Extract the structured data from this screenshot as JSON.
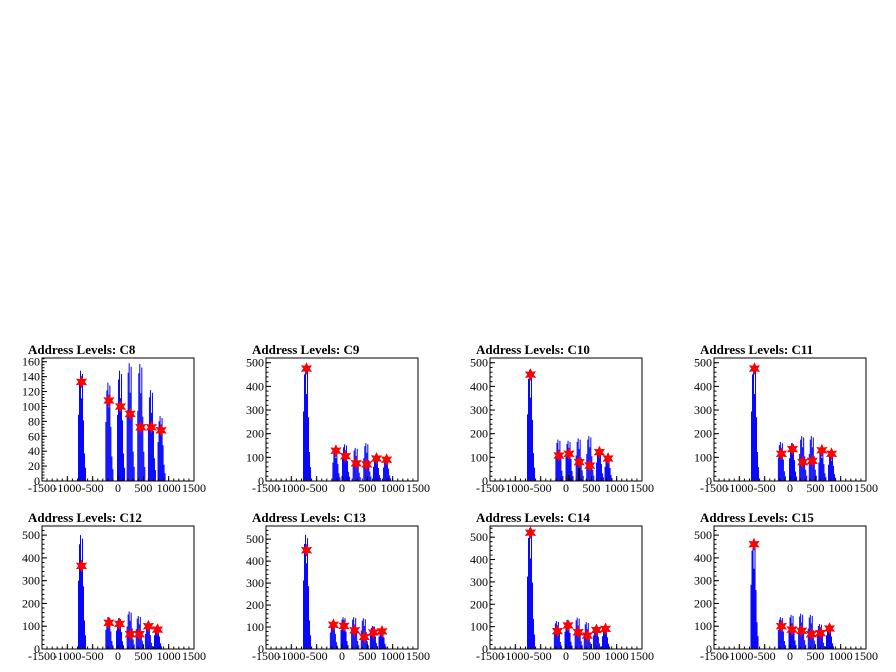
{
  "chart_data": [
    {
      "type": "histogram",
      "title": "Address Levels: C8",
      "ylim": [
        0,
        165
      ],
      "yticks": [
        0,
        20,
        40,
        60,
        80,
        100,
        120,
        140,
        160
      ],
      "xlim": [
        -1500,
        1500
      ],
      "xticks": [
        -1500,
        -1000,
        -500,
        0,
        500,
        1000,
        1500
      ],
      "peaks": [
        {
          "x": -720,
          "y": 148
        },
        {
          "x": -180,
          "y": 132
        },
        {
          "x": 50,
          "y": 148
        },
        {
          "x": 240,
          "y": 158
        },
        {
          "x": 450,
          "y": 157
        },
        {
          "x": 660,
          "y": 122
        },
        {
          "x": 850,
          "y": 87
        }
      ],
      "markers": [
        {
          "x": -720,
          "y": 133
        },
        {
          "x": -180,
          "y": 108
        },
        {
          "x": 50,
          "y": 100
        },
        {
          "x": 240,
          "y": 90
        },
        {
          "x": 450,
          "y": 72
        },
        {
          "x": 660,
          "y": 72
        },
        {
          "x": 850,
          "y": 68
        }
      ],
      "extra_bars": []
    },
    {
      "type": "histogram",
      "title": "Address Levels: C9",
      "ylim": [
        0,
        520
      ],
      "yticks": [
        0,
        100,
        200,
        300,
        400,
        500
      ],
      "xlim": [
        -1500,
        1500
      ],
      "xticks": [
        -1500,
        -1000,
        -500,
        0,
        500,
        1000,
        1500
      ],
      "peaks": [
        {
          "x": -700,
          "y": 490
        },
        {
          "x": -120,
          "y": 130
        },
        {
          "x": 70,
          "y": 155
        },
        {
          "x": 280,
          "y": 140
        },
        {
          "x": 490,
          "y": 160
        },
        {
          "x": 680,
          "y": 100
        },
        {
          "x": 880,
          "y": 95
        }
      ],
      "markers": [
        {
          "x": -700,
          "y": 475
        },
        {
          "x": -120,
          "y": 128
        },
        {
          "x": 70,
          "y": 105
        },
        {
          "x": 280,
          "y": 75
        },
        {
          "x": 490,
          "y": 70
        },
        {
          "x": 680,
          "y": 95
        },
        {
          "x": 880,
          "y": 90
        }
      ],
      "extra_bars": []
    },
    {
      "type": "histogram",
      "title": "Address Levels: C10",
      "ylim": [
        0,
        520
      ],
      "yticks": [
        0,
        100,
        200,
        300,
        400,
        500
      ],
      "xlim": [
        -1500,
        1500
      ],
      "xticks": [
        -1500,
        -1000,
        -500,
        0,
        500,
        1000,
        1500
      ],
      "peaks": [
        {
          "x": -700,
          "y": 470
        },
        {
          "x": -140,
          "y": 175
        },
        {
          "x": 60,
          "y": 170
        },
        {
          "x": 260,
          "y": 180
        },
        {
          "x": 470,
          "y": 190
        },
        {
          "x": 660,
          "y": 130
        },
        {
          "x": 830,
          "y": 100
        }
      ],
      "markers": [
        {
          "x": -700,
          "y": 450
        },
        {
          "x": -140,
          "y": 108
        },
        {
          "x": 60,
          "y": 115
        },
        {
          "x": 260,
          "y": 80
        },
        {
          "x": 470,
          "y": 65
        },
        {
          "x": 660,
          "y": 122
        },
        {
          "x": 830,
          "y": 95
        }
      ],
      "extra_bars": [
        {
          "x": 60,
          "y": 25
        },
        {
          "x": 260,
          "y": 55
        }
      ]
    },
    {
      "type": "histogram",
      "title": "Address Levels: C11",
      "ylim": [
        0,
        520
      ],
      "yticks": [
        0,
        100,
        200,
        300,
        400,
        500
      ],
      "xlim": [
        -1500,
        1500
      ],
      "xticks": [
        -1500,
        -1000,
        -500,
        0,
        500,
        1000,
        1500
      ],
      "peaks": [
        {
          "x": -700,
          "y": 490
        },
        {
          "x": -170,
          "y": 165
        },
        {
          "x": 50,
          "y": 160
        },
        {
          "x": 250,
          "y": 190
        },
        {
          "x": 440,
          "y": 190
        },
        {
          "x": 630,
          "y": 130
        },
        {
          "x": 820,
          "y": 115
        }
      ],
      "markers": [
        {
          "x": -700,
          "y": 475
        },
        {
          "x": -170,
          "y": 115
        },
        {
          "x": 50,
          "y": 135
        },
        {
          "x": 250,
          "y": 80
        },
        {
          "x": 440,
          "y": 85
        },
        {
          "x": 630,
          "y": 130
        },
        {
          "x": 820,
          "y": 115
        }
      ],
      "extra_bars": []
    },
    {
      "type": "histogram",
      "title": "Address Levels: C12",
      "ylim": [
        0,
        540
      ],
      "yticks": [
        0,
        100,
        200,
        300,
        400,
        500
      ],
      "xlim": [
        -1500,
        1500
      ],
      "xticks": [
        -1500,
        -1000,
        -500,
        0,
        500,
        1000,
        1500
      ],
      "peaks": [
        {
          "x": -720,
          "y": 500
        },
        {
          "x": -180,
          "y": 140
        },
        {
          "x": 30,
          "y": 135
        },
        {
          "x": 240,
          "y": 165
        },
        {
          "x": 420,
          "y": 145
        },
        {
          "x": 600,
          "y": 110
        },
        {
          "x": 780,
          "y": 100
        }
      ],
      "markers": [
        {
          "x": -720,
          "y": 365
        },
        {
          "x": -180,
          "y": 115
        },
        {
          "x": 30,
          "y": 110
        },
        {
          "x": 240,
          "y": 65
        },
        {
          "x": 420,
          "y": 65
        },
        {
          "x": 600,
          "y": 100
        },
        {
          "x": 780,
          "y": 85
        }
      ],
      "extra_bars": []
    },
    {
      "type": "histogram",
      "title": "Address Levels: C13",
      "ylim": [
        0,
        560
      ],
      "yticks": [
        0,
        100,
        200,
        300,
        400,
        500
      ],
      "xlim": [
        -1500,
        1500
      ],
      "xticks": [
        -1500,
        -1000,
        -500,
        0,
        500,
        1000,
        1500
      ],
      "peaks": [
        {
          "x": -700,
          "y": 520
        },
        {
          "x": -170,
          "y": 125
        },
        {
          "x": 40,
          "y": 145
        },
        {
          "x": 250,
          "y": 145
        },
        {
          "x": 440,
          "y": 140
        },
        {
          "x": 620,
          "y": 105
        },
        {
          "x": 790,
          "y": 95
        }
      ],
      "markers": [
        {
          "x": -700,
          "y": 450
        },
        {
          "x": -170,
          "y": 110
        },
        {
          "x": 40,
          "y": 105
        },
        {
          "x": 250,
          "y": 85
        },
        {
          "x": 440,
          "y": 55
        },
        {
          "x": 620,
          "y": 75
        },
        {
          "x": 790,
          "y": 80
        }
      ],
      "extra_bars": []
    },
    {
      "type": "histogram",
      "title": "Address Levels: C14",
      "ylim": [
        0,
        550
      ],
      "yticks": [
        0,
        100,
        200,
        300,
        400,
        500
      ],
      "xlim": [
        -1500,
        1500
      ],
      "xticks": [
        -1500,
        -1000,
        -500,
        0,
        500,
        1000,
        1500
      ],
      "peaks": [
        {
          "x": -700,
          "y": 540
        },
        {
          "x": -170,
          "y": 125
        },
        {
          "x": 40,
          "y": 130
        },
        {
          "x": 240,
          "y": 140
        },
        {
          "x": 420,
          "y": 120
        },
        {
          "x": 600,
          "y": 100
        },
        {
          "x": 780,
          "y": 95
        }
      ],
      "markers": [
        {
          "x": -700,
          "y": 520
        },
        {
          "x": -170,
          "y": 80
        },
        {
          "x": 40,
          "y": 105
        },
        {
          "x": 240,
          "y": 75
        },
        {
          "x": 420,
          "y": 60
        },
        {
          "x": 600,
          "y": 85
        },
        {
          "x": 780,
          "y": 90
        }
      ],
      "extra_bars": []
    },
    {
      "type": "histogram",
      "title": "Address Levels: C15",
      "ylim": [
        0,
        540
      ],
      "yticks": [
        0,
        100,
        200,
        300,
        400,
        500
      ],
      "xlim": [
        -1500,
        1500
      ],
      "xticks": [
        -1500,
        -1000,
        -500,
        0,
        500,
        1000,
        1500
      ],
      "peaks": [
        {
          "x": -710,
          "y": 470
        },
        {
          "x": -170,
          "y": 140
        },
        {
          "x": 40,
          "y": 150
        },
        {
          "x": 230,
          "y": 155
        },
        {
          "x": 420,
          "y": 150
        },
        {
          "x": 600,
          "y": 110
        },
        {
          "x": 780,
          "y": 100
        }
      ],
      "markers": [
        {
          "x": -710,
          "y": 460
        },
        {
          "x": -170,
          "y": 100
        },
        {
          "x": 40,
          "y": 85
        },
        {
          "x": 230,
          "y": 80
        },
        {
          "x": 420,
          "y": 65
        },
        {
          "x": 600,
          "y": 70
        },
        {
          "x": 780,
          "y": 90
        }
      ],
      "extra_bars": []
    }
  ],
  "colors": {
    "histogram": "#0000ff",
    "marker": "#ff0000",
    "extra": "#000000"
  }
}
